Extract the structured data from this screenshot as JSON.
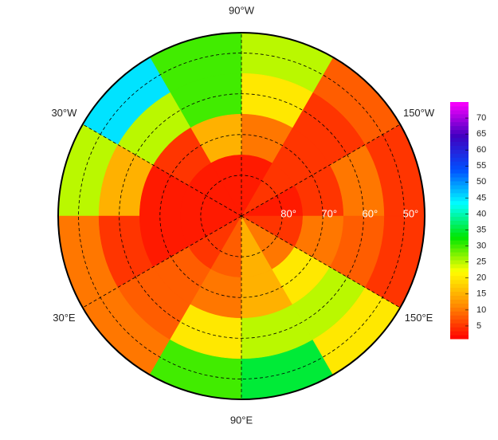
{
  "chart_data": {
    "type": "polar-heatmap",
    "latlim": [
      45,
      90
    ],
    "lat": [
      50,
      60,
      70,
      80
    ],
    "lon": [
      -165,
      -135,
      -105,
      -75,
      -45,
      -15,
      15,
      45,
      75,
      105,
      135,
      165
    ],
    "values": [
      [
        5,
        8,
        25,
        30,
        45,
        25,
        10,
        10,
        30,
        35,
        20,
        5
      ],
      [
        10,
        5,
        20,
        30,
        25,
        15,
        5,
        8,
        20,
        25,
        25,
        8
      ],
      [
        5,
        5,
        10,
        15,
        5,
        3,
        3,
        8,
        10,
        15,
        20,
        10
      ],
      [
        3,
        5,
        3,
        3,
        3,
        3,
        3,
        5,
        8,
        15,
        10,
        5
      ]
    ],
    "latticks": [
      {
        "value": 80,
        "label": "80°"
      },
      {
        "value": 70,
        "label": "70°"
      },
      {
        "value": 60,
        "label": "60°"
      },
      {
        "value": 50,
        "label": "50°"
      }
    ],
    "lonticks": [
      {
        "value": -90,
        "label": "90°W"
      },
      {
        "value": -30,
        "label": "30°W"
      },
      {
        "value": 30,
        "label": "30°E"
      },
      {
        "value": 90,
        "label": "90°E"
      },
      {
        "value": 150,
        "label": "150°E"
      },
      {
        "value": -150,
        "label": "150°W"
      }
    ],
    "clim": [
      1,
      75
    ],
    "cticks": [
      5,
      10,
      15,
      20,
      25,
      30,
      35,
      40,
      45,
      50,
      55,
      60,
      65,
      70
    ],
    "colormap": [
      "#ff0000",
      "#ff8c00",
      "#ffff00",
      "#00e600",
      "#00ffff",
      "#0050ff",
      "#4000c0",
      "#ff00ff"
    ]
  }
}
